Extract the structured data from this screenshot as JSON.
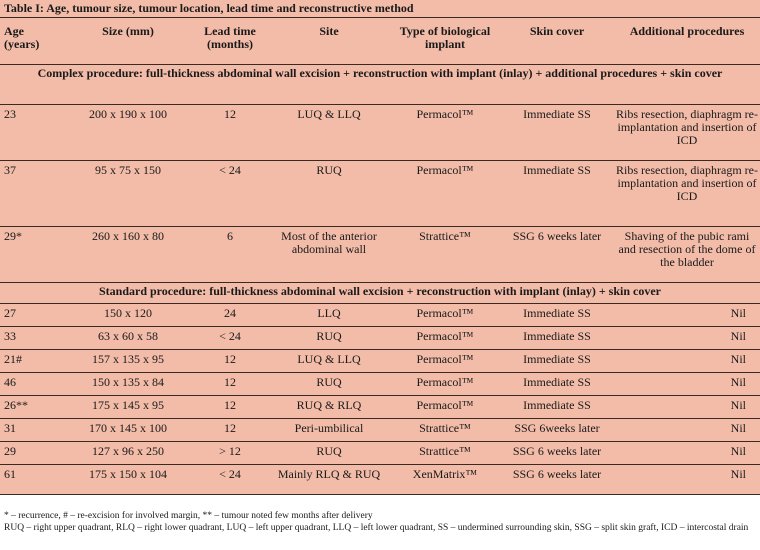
{
  "caption": "Table I: Age, tumour size, tumour location, lead time and reconstructive method",
  "headers": {
    "age": "Age (years)",
    "size": "Size (mm)",
    "lead": "Lead time (months)",
    "site": "Site",
    "implant": "Type of biological implant",
    "skin": "Skin cover",
    "additional": "Additional procedures"
  },
  "sections": {
    "complex": "Complex procedure: full-thickness abdominal wall excision + reconstruction with implant (inlay) + additional procedures + skin cover",
    "standard": "Standard procedure: full-thickness abdominal wall excision + reconstruction with implant (inlay) + skin cover"
  },
  "complex_rows": [
    {
      "age": "23",
      "size": "200 x 190 x 100",
      "lead": "12",
      "site": "LUQ & LLQ",
      "implant": "Permacol™",
      "skin": "Immediate SS",
      "additional": "Ribs resection, diaphragm re-implantation and insertion of ICD"
    },
    {
      "age": "37",
      "size": "95 x 75 x 150",
      "lead": "< 24",
      "site": "RUQ",
      "implant": "Permacol™",
      "skin": "Immediate SS",
      "additional": "Ribs resection, diaphragm re-implantation and insertion of ICD"
    },
    {
      "age": "29*",
      "size": "260 x 160 x 80",
      "lead": "6",
      "site": "Most of the anterior abdominal wall",
      "implant": "Strattice™",
      "skin": "SSG 6 weeks later",
      "additional": "Shaving of the pubic rami and resection of the dome of the bladder"
    }
  ],
  "standard_rows": [
    {
      "age": "27",
      "size": "150 x 120",
      "lead": "24",
      "site": "LLQ",
      "implant": "Permacol™",
      "skin": "Immediate SS",
      "additional": "Nil"
    },
    {
      "age": "33",
      "size": "63 x 60 x 58",
      "lead": "< 24",
      "site": "RUQ",
      "implant": "Permacol™",
      "skin": "Immediate SS",
      "additional": "Nil"
    },
    {
      "age": "21#",
      "size": "157 x 135 x 95",
      "lead": "12",
      "site": "LUQ & LLQ",
      "implant": "Permacol™",
      "skin": "Immediate SS",
      "additional": "Nil"
    },
    {
      "age": "46",
      "size": "150 x 135 x 84",
      "lead": "12",
      "site": "RUQ",
      "implant": "Permacol™",
      "skin": "Immediate SS",
      "additional": "Nil"
    },
    {
      "age": "26**",
      "size": "175 x 145 x 95",
      "lead": "12",
      "site": "RUQ & RLQ",
      "implant": "Permacol™",
      "skin": "Immediate SS",
      "additional": "Nil"
    },
    {
      "age": "31",
      "size": "170 x 145 x 100",
      "lead": "12",
      "site": "Peri-umbilical",
      "implant": "Strattice™",
      "skin": "SSG 6weeks later",
      "additional": "Nil"
    },
    {
      "age": "29",
      "size": "127 x 96 x 250",
      "lead": "> 12",
      "site": "RUQ",
      "implant": "Strattice™",
      "skin": "SSG 6 weeks later",
      "additional": "Nil"
    },
    {
      "age": "61",
      "size": "175 x 150 x 104",
      "lead": "< 24",
      "site": "Mainly RLQ & RUQ",
      "implant": "XenMatrix™",
      "skin": "SSG 6 weeks later",
      "additional": "Nil"
    }
  ],
  "footnotes": [
    "* – recurrence, # – re-excision for involved margin, ** – tumour noted few months after delivery",
    "RUQ – right upper quadrant, RLQ – right lower quadrant, LUQ – left upper quadrant, LLQ – left lower quadrant, SS – undermined surrounding skin, SSG – split skin graft, ICD – intercostal drain"
  ]
}
